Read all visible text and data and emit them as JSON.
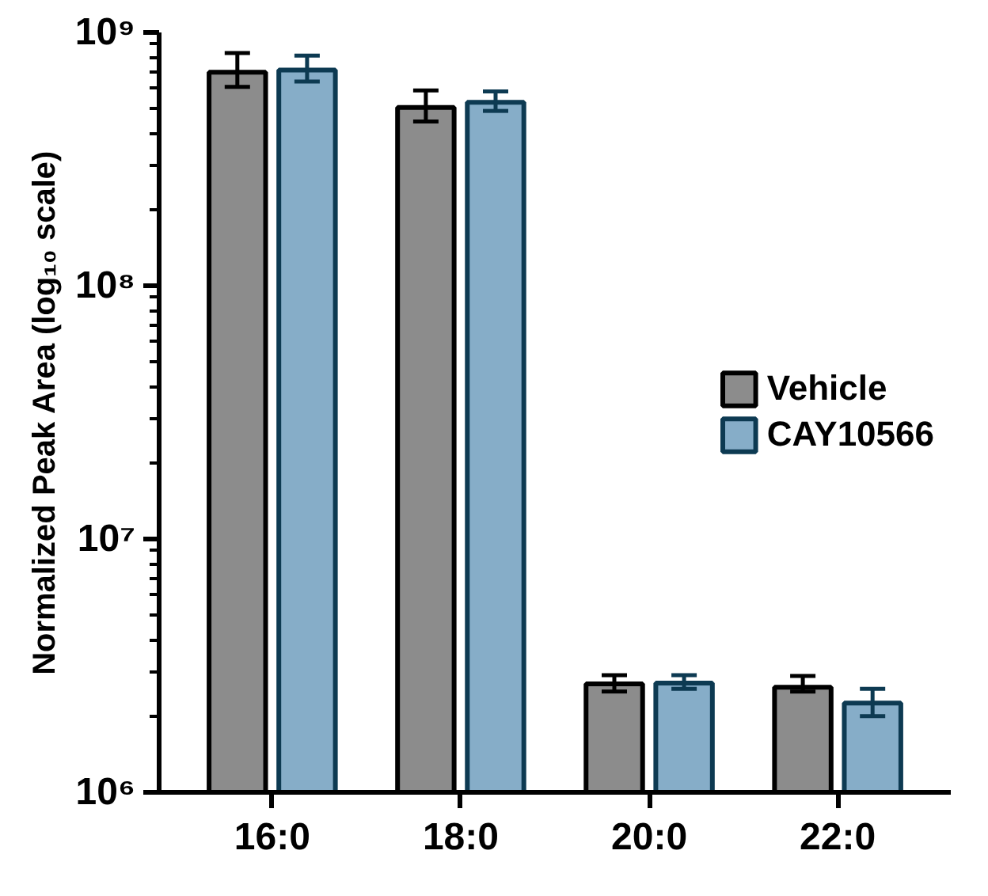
{
  "chart_data": {
    "type": "bar",
    "ylabel": "Normalized Peak Area (log₁₀ scale)",
    "categories": [
      "16:0",
      "18:0",
      "20:0",
      "22:0"
    ],
    "series": [
      {
        "name": "Vehicle",
        "color": "#8c8c8c",
        "values": [
          697000000,
          506000000,
          2680000,
          2600000
        ],
        "errors": [
          [
            610000000,
            830000000
          ],
          [
            445000000,
            590000000
          ],
          [
            2500000,
            2900000
          ],
          [
            2500000,
            2880000
          ]
        ]
      },
      {
        "name": "CAY10566",
        "color": "#86adc8",
        "values": [
          710000000,
          530000000,
          2700000,
          2250000
        ],
        "errors": [
          [
            640000000,
            810000000
          ],
          [
            490000000,
            585000000
          ],
          [
            2560000,
            2900000
          ],
          [
            2000000,
            2560000
          ]
        ]
      }
    ],
    "log": "y",
    "ylim": [
      1000000,
      1000000000
    ],
    "yticks": [
      {
        "value": 1000000,
        "label": "10⁶"
      },
      {
        "value": 10000000,
        "label": "10⁷"
      },
      {
        "value": 100000000,
        "label": "10⁸"
      },
      {
        "value": 1000000000,
        "label": "10⁹"
      }
    ],
    "grid": false,
    "legend": "right"
  }
}
